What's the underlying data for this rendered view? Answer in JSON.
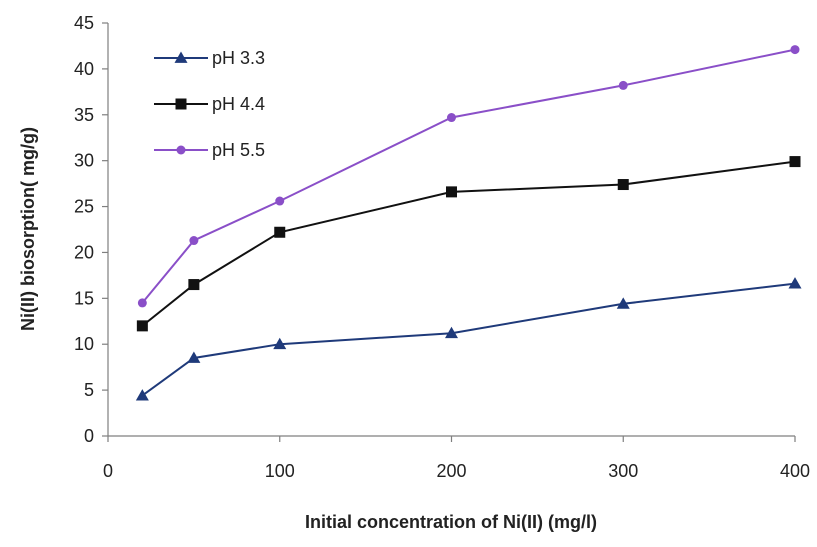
{
  "chart_data": {
    "type": "line",
    "title": "",
    "xlabel": "Initial concentration of Ni(II) (mg/l)",
    "ylabel": "Ni(II) biosorption( mg/g)",
    "xlim": [
      0,
      400
    ],
    "ylim": [
      0,
      45
    ],
    "x_ticks": [
      0,
      100,
      200,
      300,
      400
    ],
    "y_ticks": [
      0,
      5,
      10,
      15,
      20,
      25,
      30,
      35,
      40,
      45
    ],
    "grid": false,
    "legend_position": "top-left",
    "x": [
      20,
      50,
      100,
      200,
      300,
      400
    ],
    "series": [
      {
        "name": "pH 3.3",
        "marker": "triangle",
        "color": "#1f3a7a",
        "values": [
          4.4,
          8.5,
          10.0,
          11.2,
          14.4,
          16.6
        ]
      },
      {
        "name": "pH 4.4",
        "marker": "square",
        "color": "#111111",
        "values": [
          12.0,
          16.5,
          22.2,
          26.6,
          27.4,
          29.9
        ]
      },
      {
        "name": "pH 5.5",
        "marker": "circle",
        "color": "#8a4fc8",
        "values": [
          14.5,
          21.3,
          25.6,
          34.7,
          38.2,
          42.1
        ]
      }
    ]
  }
}
